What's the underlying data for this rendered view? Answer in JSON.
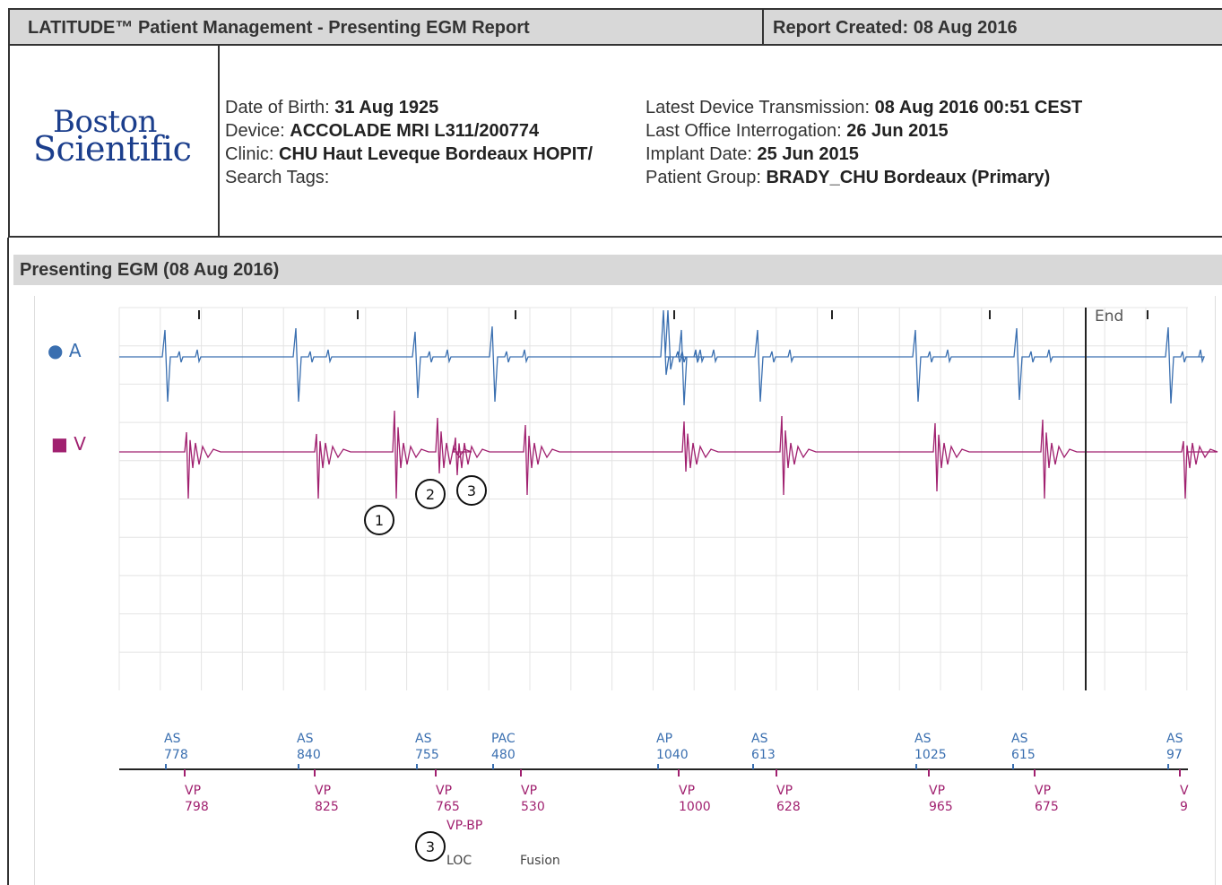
{
  "header": {
    "title": "LATITUDE™ Patient Management - Presenting EGM Report",
    "report_created": "Report Created: 08 Aug 2016"
  },
  "logo": {
    "line1": "Boston",
    "line2": "Scientific"
  },
  "patient": {
    "dob_label": "Date of Birth:",
    "dob": "31 Aug 1925",
    "device_label": "Device:",
    "device": "ACCOLADE MRI L311/200774",
    "clinic_label": "Clinic:",
    "clinic": "CHU Haut Leveque Bordeaux HOPIT/",
    "tags_label": "Search Tags:",
    "latest_label": "Latest Device Transmission:",
    "latest": "08 Aug 2016 00:51 CEST",
    "office_label": "Last Office Interrogation:",
    "office": "26 Jun 2015",
    "implant_label": "Implant Date:",
    "implant": "25 Jun 2015",
    "group_label": "Patient Group:",
    "group": "BRADY_CHU Bordeaux (Primary)"
  },
  "section_title": "Presenting EGM (08 Aug 2016)",
  "colors": {
    "atrial": "#3a6fb0",
    "ventricular": "#a0206f",
    "grid": "#e4e4e4"
  },
  "legend": {
    "atrial_label": "A",
    "ventricular_label": "V",
    "atrial_icon": "circle-icon",
    "ventricular_icon": "square-icon"
  },
  "end_label": "End",
  "atrial_markers": [
    {
      "label": "AS",
      "value": "778"
    },
    {
      "label": "AS",
      "value": "840"
    },
    {
      "label": "AS",
      "value": "755"
    },
    {
      "label": "PAC",
      "value": "480"
    },
    {
      "label": "AP",
      "value": "1040"
    },
    {
      "label": "AS",
      "value": "613"
    },
    {
      "label": "AS",
      "value": "1025"
    },
    {
      "label": "AS",
      "value": "615"
    },
    {
      "label": "AS",
      "value": "97"
    }
  ],
  "ventricular_markers": [
    {
      "label": "VP",
      "value": "798"
    },
    {
      "label": "VP",
      "value": "825"
    },
    {
      "label": "VP",
      "value": "765"
    },
    {
      "label": "VP",
      "value": "530"
    },
    {
      "label": "VP",
      "value": "1000"
    },
    {
      "label": "VP",
      "value": "628"
    },
    {
      "label": "VP",
      "value": "965"
    },
    {
      "label": "VP",
      "value": "675"
    },
    {
      "label": "V",
      "value": "9"
    }
  ],
  "vp_bp_label": "VP-BP",
  "loc_label": "LOC",
  "fusion_label": "Fusion",
  "annotations": [
    "1",
    "2",
    "3",
    "3"
  ]
}
